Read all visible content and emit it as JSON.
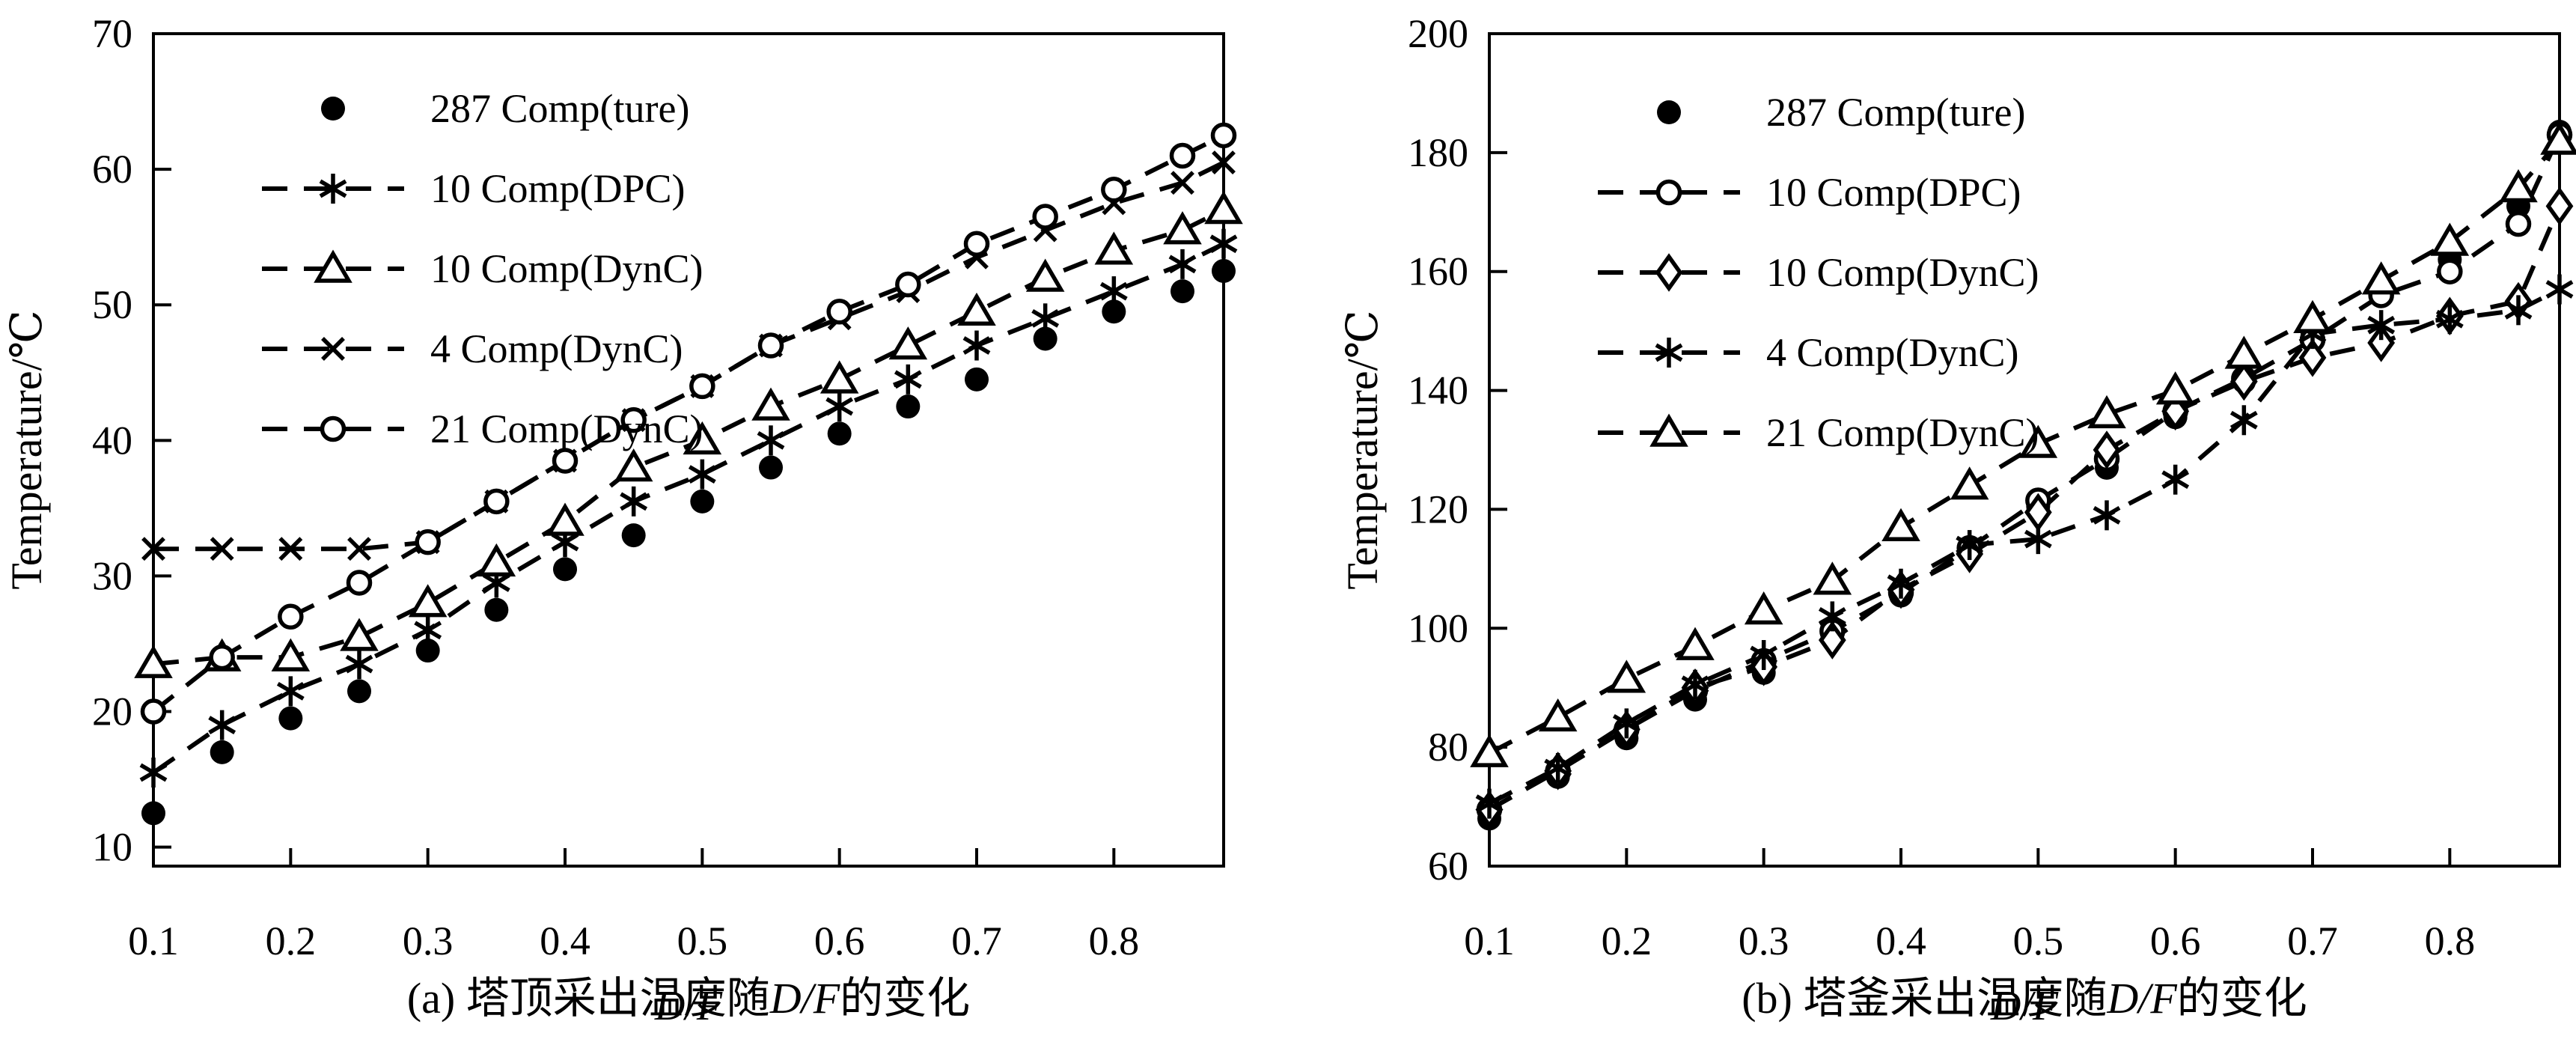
{
  "ui": {
    "captions": {
      "a": {
        "prefix": "(a) 塔顶采出温度随",
        "italic": "D/F",
        "suffix": "的变化"
      },
      "b": {
        "prefix": "(b) 塔釜采出温度随",
        "italic": "D/F",
        "suffix": "的变化"
      }
    }
  },
  "chart_data": [
    {
      "type": "line",
      "title": "",
      "xlabel": "D/F",
      "ylabel": "Temperature/℃",
      "xlim": [
        0.1,
        0.88
      ],
      "ylim": [
        8.6,
        70
      ],
      "xticks": [
        0.1,
        0.2,
        0.3,
        0.4,
        0.5,
        0.6,
        0.7,
        0.8
      ],
      "yticks": [
        10,
        20,
        30,
        40,
        50,
        60,
        70
      ],
      "grid": false,
      "legend_position": "upper-left-inside",
      "x": [
        0.1,
        0.15,
        0.2,
        0.25,
        0.3,
        0.35,
        0.4,
        0.45,
        0.5,
        0.55,
        0.6,
        0.65,
        0.7,
        0.75,
        0.8,
        0.85,
        0.88
      ],
      "series": [
        {
          "name": "287 Comp(ture)",
          "marker": "filled-circle",
          "line": "none",
          "values": [
            12.5,
            17,
            19.5,
            21.5,
            24.5,
            27.5,
            30.5,
            33,
            35.5,
            38,
            40.5,
            42.5,
            44.5,
            47.5,
            49.5,
            51,
            52.5
          ]
        },
        {
          "name": "10 Comp(DPC)",
          "marker": "asterisk",
          "line": "dashed",
          "values": [
            15.5,
            19,
            21.5,
            23.5,
            26,
            29.5,
            32.5,
            35.5,
            37.5,
            40,
            42.5,
            44.5,
            47,
            49,
            51,
            53,
            54.5
          ]
        },
        {
          "name": "10 Comp(DynC)",
          "marker": "triangle",
          "line": "dashed",
          "values": [
            23.5,
            24,
            24,
            25.5,
            28,
            31,
            34,
            38,
            40,
            42.5,
            44.5,
            47,
            49.5,
            52,
            54,
            55.5,
            57
          ]
        },
        {
          "name": "4 Comp(DynC)",
          "marker": "x",
          "line": "dashed",
          "values": [
            32,
            32,
            32,
            32,
            32.5,
            35.5,
            38.5,
            41.5,
            44,
            47,
            49,
            51,
            53.5,
            55.5,
            57.5,
            59,
            60.5
          ]
        },
        {
          "name": "21 Comp(DynC)",
          "marker": "open-circle",
          "line": "dashed",
          "values": [
            20,
            24,
            27,
            29.5,
            32.5,
            35.5,
            38.5,
            41.5,
            44,
            47,
            49.5,
            51.5,
            54.5,
            56.5,
            58.5,
            61,
            62.5
          ]
        }
      ]
    },
    {
      "type": "line",
      "title": "",
      "xlabel": "D/F",
      "ylabel": "Temperature/℃",
      "xlim": [
        0.1,
        0.88
      ],
      "ylim": [
        60,
        200
      ],
      "xticks": [
        0.1,
        0.2,
        0.3,
        0.4,
        0.5,
        0.6,
        0.7,
        0.8
      ],
      "yticks": [
        60,
        80,
        100,
        120,
        140,
        160,
        180,
        200
      ],
      "grid": false,
      "legend_position": "upper-left-inside",
      "x": [
        0.1,
        0.15,
        0.2,
        0.25,
        0.3,
        0.35,
        0.4,
        0.45,
        0.5,
        0.55,
        0.6,
        0.65,
        0.7,
        0.75,
        0.8,
        0.85,
        0.88
      ],
      "series": [
        {
          "name": "287 Comp(ture)",
          "marker": "filled-circle",
          "line": "none",
          "values": [
            68,
            75,
            81.5,
            88,
            92.5,
            99,
            105.5,
            113,
            120.5,
            127,
            135.5,
            141.5,
            149.5,
            157.5,
            162,
            171,
            183.5
          ]
        },
        {
          "name": "10 Comp(DPC)",
          "marker": "open-circle",
          "line": "dashed",
          "values": [
            69.5,
            76,
            83,
            89.5,
            94.5,
            99.5,
            106,
            113.5,
            121.5,
            128.5,
            136.5,
            142,
            148.5,
            156,
            160,
            168,
            183
          ]
        },
        {
          "name": "10 Comp(DynC)",
          "marker": "diamond",
          "line": "dashed",
          "values": [
            69.5,
            76,
            83,
            90,
            93.5,
            98,
            106.5,
            112.5,
            119.5,
            130,
            136.5,
            141.5,
            145.5,
            148,
            152.5,
            155,
            171
          ]
        },
        {
          "name": "4 Comp(DynC)",
          "marker": "asterisk",
          "line": "dashed",
          "values": [
            70.5,
            76.5,
            84,
            90.5,
            95.5,
            102,
            107.5,
            114,
            115,
            119,
            125,
            135,
            149.5,
            151,
            152,
            153.5,
            157
          ]
        },
        {
          "name": "21 Comp(DynC)",
          "marker": "triangle",
          "line": "dashed",
          "values": [
            79,
            85,
            91.5,
            97,
            103,
            108,
            117,
            124,
            131,
            136,
            140,
            146,
            152,
            158.5,
            165,
            174,
            182
          ]
        }
      ]
    }
  ]
}
